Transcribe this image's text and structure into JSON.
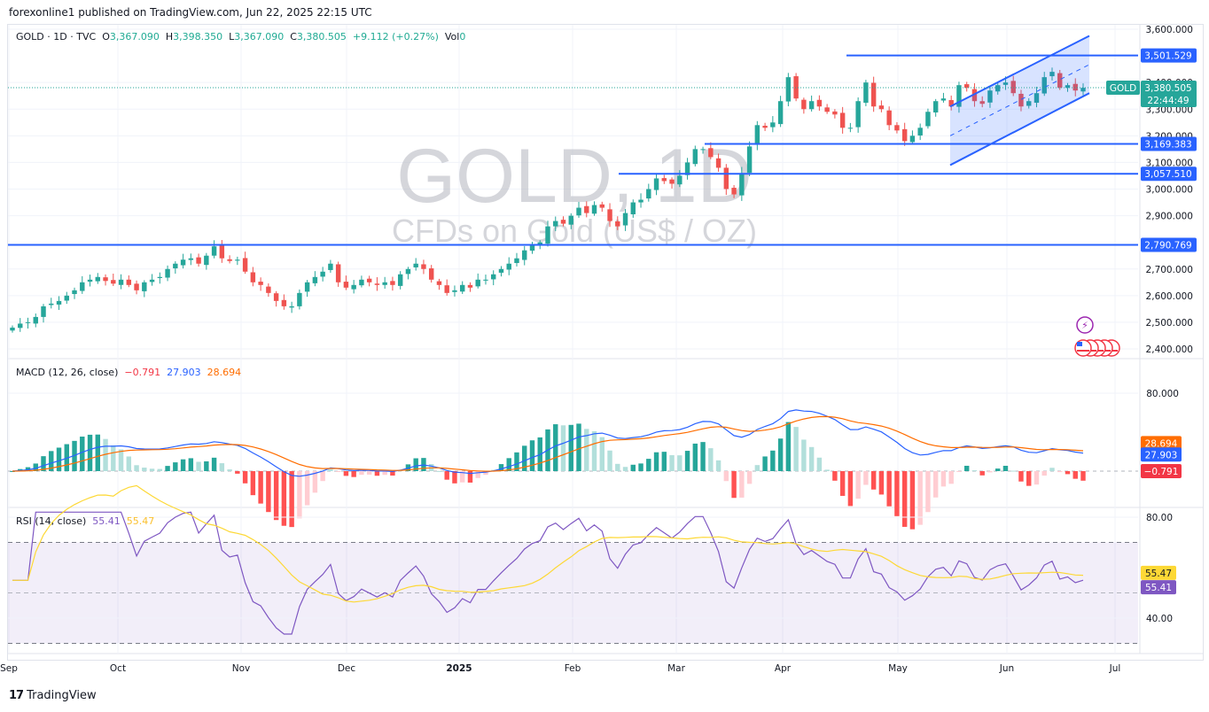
{
  "attribution": "forexonline1 published on TradingView.com, Jun 22, 2025 22:15 UTC",
  "symbol_header": {
    "symbol": "GOLD",
    "interval": "1D",
    "exchange": "TVC",
    "sep": " · ",
    "open_label": "O",
    "open": "3,367.090",
    "high_label": "H",
    "high": "3,398.350",
    "low_label": "L",
    "low": "3,367.090",
    "close_label": "C",
    "close": "3,380.505",
    "change": "+9.112 (+0.27%)",
    "vol_label": "Vol",
    "vol": "0"
  },
  "watermark": {
    "title": "GOLD, 1D",
    "subtitle": "CFDs on Gold (US$ / OZ)"
  },
  "colors": {
    "up": "#26a69a",
    "down": "#ef5350",
    "hline": "#2962ff",
    "channel_fill": "#2962ff",
    "macd": "#2962ff",
    "signal": "#ff6d00",
    "hist_up_strong": "#26a69a",
    "hist_up_weak": "#b2dfdb",
    "hist_down_strong": "#ff5252",
    "hist_down_weak": "#ffcdd2",
    "rsi": "#7e57c2",
    "rsi_ma": "#fdd835",
    "rsi_band": "#7e57c2"
  },
  "price_axis": {
    "ticks": [
      "3,600.000",
      "3,400.000",
      "3,300.000",
      "3,200.000",
      "3,100.000",
      "3,000.000",
      "2,900.000",
      "2,700.000",
      "2,600.000",
      "2,500.000",
      "2,400.000"
    ],
    "hline_labels": [
      "3,501.529",
      "3,169.383",
      "3,057.510",
      "2,790.769"
    ],
    "current_symbol": "GOLD",
    "current_price": "3,380.505",
    "countdown": "22:44:49"
  },
  "macd": {
    "title": "MACD (12, 26, close)",
    "hist": "−0.791",
    "macd": "27.903",
    "signal": "28.694",
    "axis_tick": "80.000",
    "badges": {
      "signal": "28.694",
      "macd": "27.903",
      "hist": "−0.791"
    }
  },
  "rsi": {
    "title": "RSI (14, close)",
    "rsi": "55.41",
    "ma": "55.47",
    "axis_ticks": [
      "80.00",
      "40.00"
    ],
    "badges": {
      "ma": "55.47",
      "rsi": "55.41"
    }
  },
  "time_axis": [
    "Sep",
    "Oct",
    "Nov",
    "Dec",
    "2025",
    "Feb",
    "Mar",
    "Apr",
    "May",
    "Jun",
    "Jul"
  ],
  "footer_logo": {
    "mark": "17",
    "text": "TradingView"
  },
  "chart_data": {
    "type": "candlestick",
    "title": "GOLD · 1D · TVC (CFDs on Gold (US$ / OZ))",
    "x_range": [
      "2024-09",
      "2025-06-20"
    ],
    "xlabel": "",
    "ylabel": "USD / OZ",
    "ylim": [
      2380,
      3620
    ],
    "grid": true,
    "approx_closes": [
      2480,
      2495,
      2500,
      2520,
      2560,
      2570,
      2580,
      2600,
      2620,
      2650,
      2660,
      2670,
      2655,
      2645,
      2660,
      2640,
      2620,
      2650,
      2660,
      2670,
      2700,
      2720,
      2735,
      2740,
      2720,
      2750,
      2785,
      2740,
      2730,
      2735,
      2690,
      2650,
      2640,
      2610,
      2580,
      2560,
      2560,
      2610,
      2650,
      2670,
      2690,
      2720,
      2650,
      2630,
      2640,
      2660,
      2650,
      2640,
      2650,
      2640,
      2680,
      2700,
      2720,
      2700,
      2660,
      2640,
      2610,
      2620,
      2640,
      2630,
      2660,
      2660,
      2680,
      2700,
      2720,
      2740,
      2770,
      2790,
      2800,
      2860,
      2880,
      2870,
      2900,
      2930,
      2910,
      2940,
      2930,
      2880,
      2860,
      2910,
      2950,
      2960,
      3000,
      3040,
      3030,
      3020,
      3050,
      3100,
      3150,
      3150,
      3120,
      3080,
      3000,
      2980,
      3060,
      3160,
      3240,
      3230,
      3250,
      3330,
      3420,
      3340,
      3300,
      3330,
      3310,
      3290,
      3280,
      3230,
      3230,
      3330,
      3400,
      3310,
      3300,
      3240,
      3220,
      3180,
      3200,
      3230,
      3290,
      3330,
      3340,
      3310,
      3390,
      3380,
      3330,
      3320,
      3370,
      3390,
      3400,
      3360,
      3310,
      3330,
      3360,
      3420,
      3440,
      3380,
      3390,
      3370,
      3380
    ],
    "horizontal_lines": [
      3501.529,
      3169.383,
      3057.51,
      2790.769
    ],
    "ascending_channel": {
      "start": "2025-05-15",
      "end": "2025-06-22",
      "upper": [
        3310,
        3575
      ],
      "lower": [
        3090,
        3360
      ]
    },
    "last": {
      "open": 3367.09,
      "high": 3398.35,
      "low": 3367.09,
      "close": 3380.505,
      "change": 9.112,
      "change_pct": 0.27
    },
    "indicators": {
      "macd": {
        "params": "12, 26, close",
        "macd": 27.903,
        "signal": 28.694,
        "hist": -0.791,
        "axis_ticks": [
          80
        ]
      },
      "rsi": {
        "params": "14, close",
        "rsi": 55.41,
        "ma": 55.47,
        "bands": [
          70,
          50,
          30
        ],
        "axis_ticks": [
          80,
          40
        ]
      }
    }
  }
}
